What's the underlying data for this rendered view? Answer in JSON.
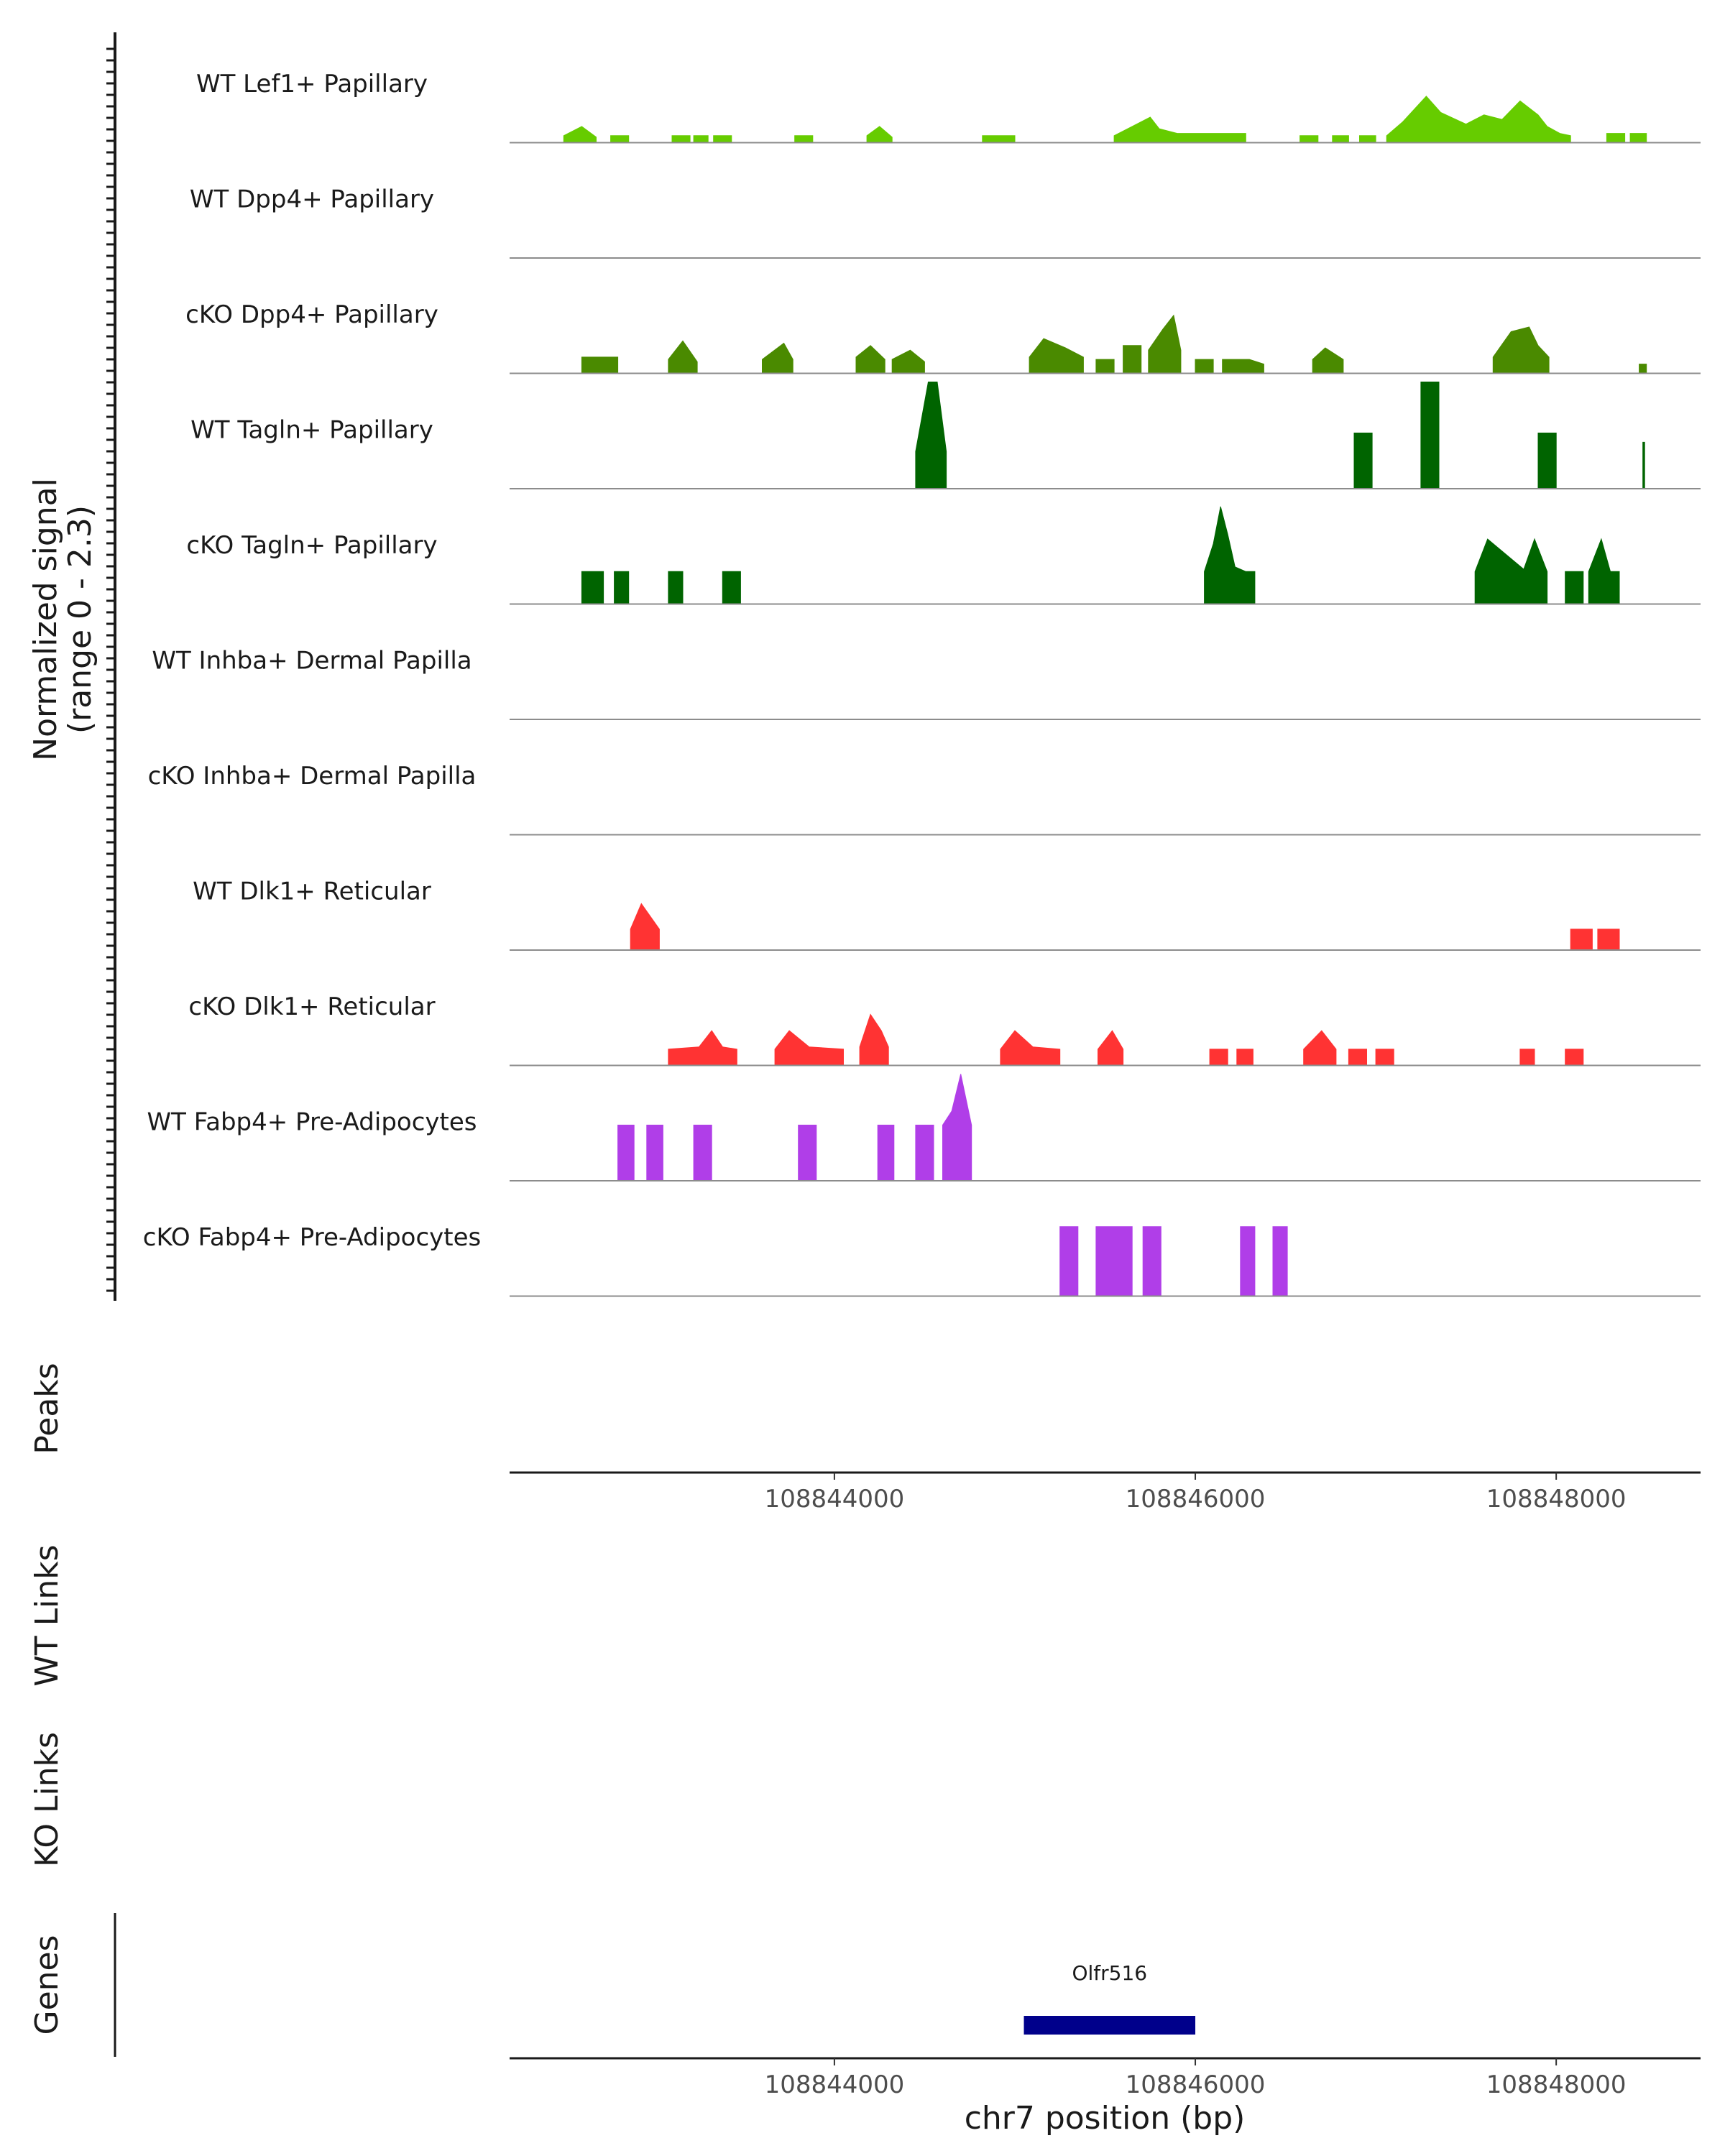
{
  "chart_data": {
    "type": "area",
    "title": "",
    "chromosome": "chr7",
    "xlabel": "chr7 position (bp)",
    "xlim": [
      108842200,
      108848800
    ],
    "x_ticks": [
      108844000,
      108846000,
      108848000
    ],
    "x_tick_labels": [
      "108844000",
      "108846000",
      "108848000"
    ],
    "ylabel_line1": "Normalized signal",
    "ylabel_line2": "(range 0 - 2.3)",
    "ylim": [
      0,
      2.3
    ],
    "side_labels": {
      "peaks": "Peaks",
      "wt_links": "WT Links",
      "ko_links": "KO Links",
      "genes": "Genes"
    },
    "tracks": [
      {
        "name": "WT Lef1+ Papillary",
        "color": "#66cc00",
        "segments": [
          {
            "x": [
              108842500,
              108842600,
              108842680
            ],
            "y": [
              0.15,
              0.35,
              0.12
            ]
          },
          {
            "x": [
              108842760,
              108842860
            ],
            "y": [
              0.15,
              0.15
            ]
          },
          {
            "x": [
              108843100,
              108843200
            ],
            "y": [
              0.15,
              0.15
            ]
          },
          {
            "x": [
              108843220,
              108843300
            ],
            "y": [
              0.15,
              0.15
            ]
          },
          {
            "x": [
              108843330,
              108843430
            ],
            "y": [
              0.15,
              0.15
            ]
          },
          {
            "x": [
              108843780,
              108843880
            ],
            "y": [
              0.15,
              0.15
            ]
          },
          {
            "x": [
              108844180,
              108844250,
              108844320
            ],
            "y": [
              0.15,
              0.35,
              0.12
            ]
          },
          {
            "x": [
              108844820,
              108845000
            ],
            "y": [
              0.15,
              0.15
            ]
          },
          {
            "x": [
              108845550,
              108845650,
              108845750,
              108845800,
              108845900,
              108846280
            ],
            "y": [
              0.15,
              0.35,
              0.55,
              0.3,
              0.2,
              0.2
            ]
          },
          {
            "x": [
              108846580,
              108846680
            ],
            "y": [
              0.15,
              0.15
            ]
          },
          {
            "x": [
              108846760,
              108846850
            ],
            "y": [
              0.15,
              0.15
            ]
          },
          {
            "x": [
              108846910,
              108847000
            ],
            "y": [
              0.15,
              0.15
            ]
          },
          {
            "x": [
              108847060,
              108847150,
              108847280,
              108847360,
              108847500,
              108847600,
              108847700,
              108847800,
              108847900,
              108847950,
              108848020,
              108848080
            ],
            "y": [
              0.15,
              0.45,
              1.0,
              0.65,
              0.4,
              0.6,
              0.5,
              0.9,
              0.6,
              0.35,
              0.2,
              0.15
            ]
          },
          {
            "x": [
              108848280,
              108848380
            ],
            "y": [
              0.2,
              0.2
            ]
          },
          {
            "x": [
              108848410,
              108848500
            ],
            "y": [
              0.2,
              0.2
            ]
          }
        ]
      },
      {
        "name": "WT Dpp4+ Papillary",
        "color": "#4a8a00",
        "segments": []
      },
      {
        "name": "cKO Dpp4+ Papillary",
        "color": "#4a8a00",
        "segments": [
          {
            "x": [
              108842600,
              108842800
            ],
            "y": [
              0.35,
              0.35
            ]
          },
          {
            "x": [
              108843080,
              108843160,
              108843240
            ],
            "y": [
              0.3,
              0.7,
              0.25
            ]
          },
          {
            "x": [
              108843600,
              108843720,
              108843770
            ],
            "y": [
              0.3,
              0.65,
              0.3
            ]
          },
          {
            "x": [
              108844120,
              108844200,
              108844280
            ],
            "y": [
              0.35,
              0.6,
              0.3
            ]
          },
          {
            "x": [
              108844320,
              108844420,
              108844500
            ],
            "y": [
              0.3,
              0.5,
              0.25
            ]
          },
          {
            "x": [
              108845080,
              108845160,
              108845280,
              108845380
            ],
            "y": [
              0.35,
              0.75,
              0.55,
              0.35
            ]
          },
          {
            "x": [
              108845450,
              108845550
            ],
            "y": [
              0.3,
              0.3
            ]
          },
          {
            "x": [
              108845600,
              108845700
            ],
            "y": [
              0.6,
              0.6
            ]
          },
          {
            "x": [
              108845740,
              108845820,
              108845880,
              108845920
            ],
            "y": [
              0.5,
              0.95,
              1.25,
              0.5
            ]
          },
          {
            "x": [
              108846000,
              108846100
            ],
            "y": [
              0.3,
              0.3
            ]
          },
          {
            "x": [
              108846150,
              108846300,
              108846380
            ],
            "y": [
              0.3,
              0.3,
              0.2
            ]
          },
          {
            "x": [
              108846650,
              108846720,
              108846820
            ],
            "y": [
              0.3,
              0.55,
              0.3
            ]
          },
          {
            "x": [
              108847650,
              108847750,
              108847850,
              108847900,
              108847960
            ],
            "y": [
              0.35,
              0.9,
              1.0,
              0.6,
              0.35
            ]
          },
          {
            "x": [
              108848460,
              108848500
            ],
            "y": [
              0.2,
              0.2
            ]
          }
        ]
      },
      {
        "name": "WT Tagln+ Papillary",
        "color": "#006400",
        "segments": [
          {
            "x": [
              108844450,
              108844520,
              108844570,
              108844620
            ],
            "y": [
              0.8,
              2.3,
              2.3,
              0.8
            ]
          },
          {
            "x": [
              108846880,
              108846980
            ],
            "y": [
              1.2,
              1.2
            ]
          },
          {
            "x": [
              108847250,
              108847350
            ],
            "y": [
              2.3,
              2.3
            ]
          },
          {
            "x": [
              108847900,
              108848000
            ],
            "y": [
              1.2,
              1.2
            ]
          },
          {
            "x": [
              108848480,
              108848490
            ],
            "y": [
              1.0,
              1.0
            ]
          }
        ]
      },
      {
        "name": "cKO Tagln+ Papillary",
        "color": "#006400",
        "segments": [
          {
            "x": [
              108842600,
              108842720
            ],
            "y": [
              0.7,
              0.7
            ]
          },
          {
            "x": [
              108842780,
              108842860
            ],
            "y": [
              0.7,
              0.7
            ]
          },
          {
            "x": [
              108843080,
              108843160
            ],
            "y": [
              0.7,
              0.7
            ]
          },
          {
            "x": [
              108843380,
              108843480
            ],
            "y": [
              0.7,
              0.7
            ]
          },
          {
            "x": [
              108846050,
              108846100,
              108846140,
              108846180,
              108846220,
              108846280,
              108846330
            ],
            "y": [
              0.7,
              1.3,
              2.1,
              1.5,
              0.8,
              0.7,
              0.7
            ]
          },
          {
            "x": [
              108847550,
              108847620,
              108847820,
              108847880,
              108847950
            ],
            "y": [
              0.7,
              1.4,
              0.75,
              1.4,
              0.7
            ]
          },
          {
            "x": [
              108848050,
              108848150
            ],
            "y": [
              0.7,
              0.7
            ]
          },
          {
            "x": [
              108848180,
              108848250,
              108848300,
              108848350
            ],
            "y": [
              0.7,
              1.4,
              0.7,
              0.7
            ]
          }
        ]
      },
      {
        "name": "WT Inhba+ Dermal Papilla",
        "color": "#006400",
        "segments": []
      },
      {
        "name": "cKO Inhba+ Dermal Papilla",
        "color": "#006400",
        "segments": []
      },
      {
        "name": "WT Dlk1+ Reticular",
        "color": "#ff3333",
        "segments": [
          {
            "x": [
              108842870,
              108842930,
              108843030
            ],
            "y": [
              0.45,
              1.0,
              0.45
            ]
          },
          {
            "x": [
              108848080,
              108848200
            ],
            "y": [
              0.45,
              0.45
            ]
          },
          {
            "x": [
              108848230,
              108848350
            ],
            "y": [
              0.45,
              0.45
            ]
          }
        ]
      },
      {
        "name": "cKO Dlk1+ Reticular",
        "color": "#ff3333",
        "segments": [
          {
            "x": [
              108843080,
              108843250,
              108843320,
              108843380,
              108843460
            ],
            "y": [
              0.35,
              0.4,
              0.75,
              0.4,
              0.35
            ]
          },
          {
            "x": [
              108843670,
              108843750,
              108843860,
              108844050
            ],
            "y": [
              0.35,
              0.75,
              0.4,
              0.35
            ]
          },
          {
            "x": [
              108844140,
              108844200,
              108844260,
              108844300
            ],
            "y": [
              0.4,
              1.1,
              0.75,
              0.4
            ]
          },
          {
            "x": [
              108844920,
              108845000,
              108845100,
              108845250
            ],
            "y": [
              0.35,
              0.75,
              0.4,
              0.35
            ]
          },
          {
            "x": [
              108845460,
              108845540,
              108845600
            ],
            "y": [
              0.35,
              0.75,
              0.35
            ]
          },
          {
            "x": [
              108846080,
              108846180
            ],
            "y": [
              0.35,
              0.35
            ]
          },
          {
            "x": [
              108846230,
              108846320
            ],
            "y": [
              0.35,
              0.35
            ]
          },
          {
            "x": [
              108846600,
              108846700,
              108846780
            ],
            "y": [
              0.35,
              0.75,
              0.35
            ]
          },
          {
            "x": [
              108846850,
              108846950
            ],
            "y": [
              0.35,
              0.35
            ]
          },
          {
            "x": [
              108847000,
              108847100
            ],
            "y": [
              0.35,
              0.35
            ]
          },
          {
            "x": [
              108847800,
              108847880
            ],
            "y": [
              0.35,
              0.35
            ]
          },
          {
            "x": [
              108848050,
              108848150
            ],
            "y": [
              0.35,
              0.35
            ]
          }
        ]
      },
      {
        "name": "WT Fabp4+ Pre-Adipocytes",
        "color": "#b03ee8",
        "segments": [
          {
            "x": [
              108842800,
              108842890
            ],
            "y": [
              1.2,
              1.2
            ]
          },
          {
            "x": [
              108842960,
              108843050
            ],
            "y": [
              1.2,
              1.2
            ]
          },
          {
            "x": [
              108843220,
              108843320
            ],
            "y": [
              1.2,
              1.2
            ]
          },
          {
            "x": [
              108843800,
              108843900
            ],
            "y": [
              1.2,
              1.2
            ]
          },
          {
            "x": [
              108844240,
              108844330
            ],
            "y": [
              1.2,
              1.2
            ]
          },
          {
            "x": [
              108844450,
              108844550
            ],
            "y": [
              1.2,
              1.2
            ]
          },
          {
            "x": [
              108844600,
              108844650,
              108844700,
              108844760
            ],
            "y": [
              1.2,
              1.5,
              2.3,
              1.2
            ]
          }
        ]
      },
      {
        "name": "cKO Fabp4+ Pre-Adipocytes",
        "color": "#b03ee8",
        "segments": [
          {
            "x": [
              108845250,
              108845350
            ],
            "y": [
              1.5,
              1.5
            ]
          },
          {
            "x": [
              108845450,
              108845650
            ],
            "y": [
              1.5,
              1.5
            ]
          },
          {
            "x": [
              108845710,
              108845810
            ],
            "y": [
              1.5,
              1.5
            ]
          },
          {
            "x": [
              108846250,
              108846330
            ],
            "y": [
              1.5,
              1.5
            ]
          },
          {
            "x": [
              108846430,
              108846510
            ],
            "y": [
              1.5,
              1.5
            ]
          }
        ]
      }
    ],
    "genes": [
      {
        "name": "Olfr516",
        "start": 108845050,
        "end": 108846000,
        "color": "#00008b"
      }
    ]
  }
}
